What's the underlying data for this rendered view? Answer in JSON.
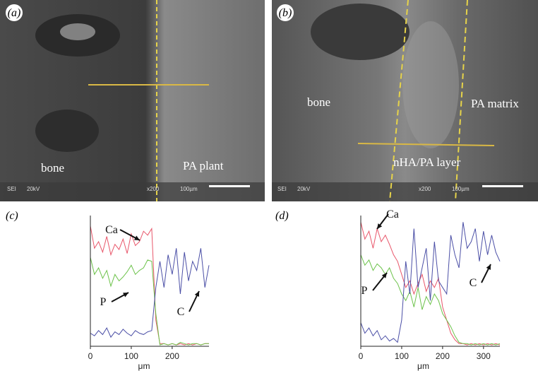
{
  "panels": [
    {
      "label": "(a)",
      "texts": [
        "bone",
        "PA plant"
      ],
      "footer": [
        "SEI",
        "20kV",
        "x200",
        "100µm"
      ]
    },
    {
      "label": "(b)",
      "texts": [
        "bone",
        "PA matrix",
        "nHA/PA layer"
      ],
      "footer": [
        "SEI",
        "20kV",
        "x200",
        "100µm"
      ]
    }
  ],
  "chart_data": [
    {
      "type": "line",
      "label": "(c)",
      "xlabel": "μm",
      "x": [
        0,
        10,
        20,
        30,
        40,
        50,
        60,
        70,
        80,
        90,
        100,
        110,
        120,
        130,
        140,
        150,
        160,
        170,
        180,
        190,
        200,
        210,
        220,
        230,
        240,
        250,
        260,
        270,
        280,
        290
      ],
      "xlim": [
        0,
        290
      ],
      "xticks": [
        0,
        100,
        200
      ],
      "ylim": [
        0,
        100
      ],
      "series": [
        {
          "name": "Ca",
          "color": "#e8566a",
          "values": [
            92,
            75,
            80,
            72,
            84,
            70,
            78,
            74,
            82,
            71,
            86,
            77,
            80,
            88,
            85,
            90,
            20,
            2,
            2,
            1,
            2,
            1,
            2,
            1,
            2,
            1,
            2,
            1,
            2,
            2
          ]
        },
        {
          "name": "P",
          "color": "#6cc24a",
          "values": [
            68,
            55,
            60,
            52,
            58,
            46,
            55,
            50,
            53,
            57,
            62,
            55,
            58,
            60,
            66,
            65,
            25,
            1,
            2,
            1,
            2,
            1,
            3,
            2,
            1,
            2,
            2,
            1,
            2,
            2
          ]
        },
        {
          "name": "C",
          "color": "#4b4fa6",
          "values": [
            10,
            8,
            12,
            9,
            14,
            7,
            11,
            9,
            13,
            10,
            8,
            12,
            10,
            9,
            11,
            12,
            45,
            65,
            45,
            70,
            55,
            75,
            40,
            72,
            50,
            65,
            58,
            75,
            45,
            62
          ]
        }
      ],
      "annotations": [
        "Ca",
        "P",
        "C"
      ]
    },
    {
      "type": "line",
      "label": "(d)",
      "xlabel": "μm",
      "x": [
        0,
        10,
        20,
        30,
        40,
        50,
        60,
        70,
        80,
        90,
        100,
        110,
        120,
        130,
        140,
        150,
        160,
        170,
        180,
        190,
        200,
        210,
        220,
        230,
        240,
        250,
        260,
        270,
        280,
        290,
        300,
        310,
        320,
        330,
        340
      ],
      "xlim": [
        0,
        340
      ],
      "xticks": [
        0,
        100,
        200,
        300
      ],
      "ylim": [
        0,
        100
      ],
      "series": [
        {
          "name": "Ca",
          "color": "#e8566a",
          "values": [
            95,
            82,
            88,
            75,
            90,
            80,
            85,
            78,
            70,
            65,
            55,
            45,
            50,
            40,
            48,
            55,
            42,
            50,
            45,
            52,
            30,
            20,
            10,
            5,
            2,
            2,
            1,
            2,
            1,
            2,
            1,
            2,
            1,
            2,
            1
          ]
        },
        {
          "name": "P",
          "color": "#6cc24a",
          "values": [
            70,
            62,
            66,
            58,
            63,
            60,
            55,
            60,
            52,
            48,
            40,
            35,
            42,
            30,
            45,
            28,
            38,
            32,
            40,
            35,
            25,
            20,
            15,
            8,
            3,
            2,
            2,
            1,
            2,
            1,
            2,
            1,
            2,
            1,
            2
          ]
        },
        {
          "name": "C",
          "color": "#4b4fa6",
          "values": [
            18,
            10,
            14,
            8,
            12,
            5,
            8,
            4,
            6,
            3,
            20,
            65,
            40,
            90,
            45,
            60,
            75,
            35,
            80,
            50,
            45,
            40,
            85,
            70,
            60,
            95,
            75,
            80,
            90,
            65,
            88,
            70,
            85,
            72,
            65
          ]
        }
      ],
      "annotations": [
        "Ca",
        "P",
        "C"
      ]
    }
  ]
}
